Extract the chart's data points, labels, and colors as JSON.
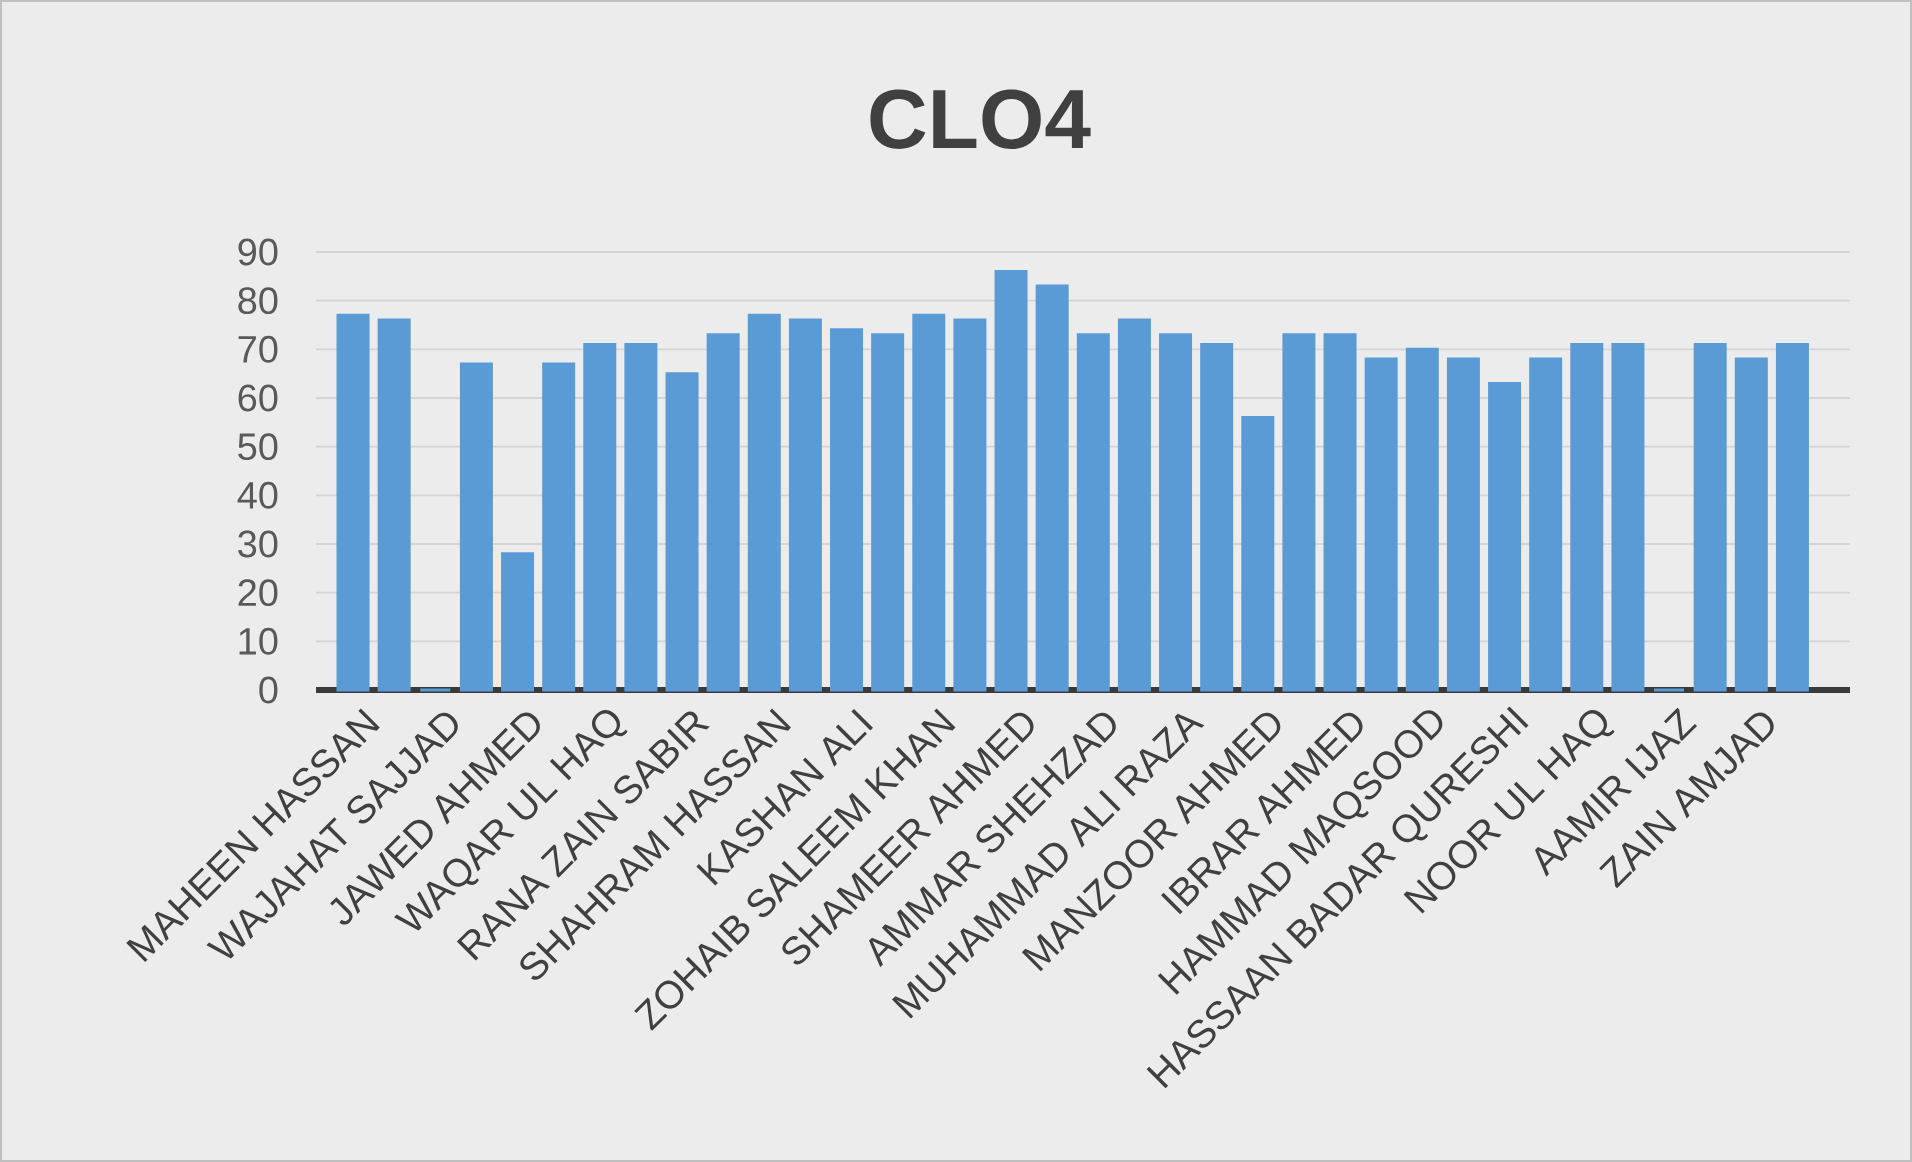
{
  "chart_data": {
    "type": "bar",
    "title": "CLO4",
    "categories": [
      "MAHEEN HASSAN",
      null,
      "WAJAHAT SAJJAD",
      null,
      "JAWED AHMED",
      null,
      "WAQAR UL HAQ",
      null,
      "RANA ZAIN SABIR",
      null,
      "SHAHRAM HASSAN",
      null,
      "KASHAN ALI",
      null,
      "ZOHAIB SALEEM KHAN",
      null,
      "SHAMEER AHMED",
      null,
      "AMMAR SHEHZAD",
      null,
      "MUHAMMAD ALI RAZA",
      null,
      "MANZOOR AHMED",
      null,
      "IBRAR AHMED",
      null,
      "HAMMAD MAQSOOD",
      null,
      "HASSAAN BADAR QURESHI",
      null,
      "NOOR UL HAQ",
      null,
      "AAMIR IJAZ",
      null,
      "ZAIN AMJAD",
      null
    ],
    "values": [
      77,
      76,
      0,
      67,
      28,
      67,
      71,
      71,
      65,
      73,
      77,
      76,
      74,
      73,
      77,
      76,
      86,
      83,
      73,
      76,
      73,
      71,
      56,
      73,
      73,
      68,
      70,
      68,
      63,
      68,
      71,
      71,
      0,
      71,
      68,
      71
    ],
    "color": "#5b9bd5",
    "ylim": [
      0,
      90
    ],
    "yticks": [
      0,
      10,
      20,
      30,
      40,
      50,
      60,
      70,
      80,
      90
    ],
    "grid": "y"
  }
}
